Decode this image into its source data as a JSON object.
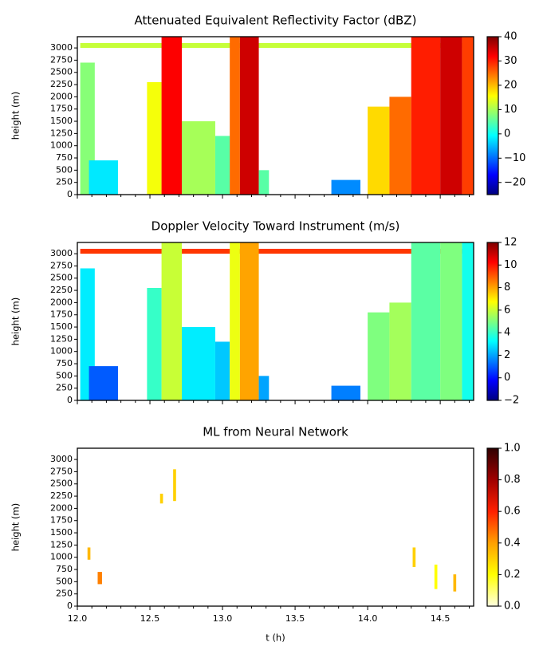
{
  "chart_data": [
    {
      "type": "heatmap",
      "title": "Attenuated Equivalent Reflectivity Factor (dBZ)",
      "y_label": "height (m)",
      "xlim": [
        12,
        14.73
      ],
      "ylim": [
        0,
        3230
      ],
      "xticks": [
        {
          "value": 12,
          "label": "12.0"
        },
        12.5,
        {
          "value": 13,
          "label": "13.0"
        },
        13.5,
        {
          "value": 14,
          "label": "14.0"
        },
        14.5
      ],
      "yticks": [
        0,
        250,
        500,
        750,
        1000,
        1250,
        1500,
        1750,
        2000,
        2250,
        2500,
        2750,
        3000
      ],
      "clim": [
        -25,
        40
      ],
      "cticks": [
        {
          "value": -20,
          "label": "−20"
        },
        {
          "value": -10,
          "label": "−10"
        },
        0,
        10,
        20,
        30,
        40
      ],
      "cmap": [
        "#00007f",
        "#0000ff",
        "#007fff",
        "#00ffff",
        "#7fff7f",
        "#ffff00",
        "#ff7f00",
        "#ff0000",
        "#7f0000"
      ],
      "cells": [
        {
          "t0": 12.02,
          "t1": 14.73,
          "h0": 3000,
          "h1": 3100,
          "v": 12
        },
        {
          "t0": 12.02,
          "t1": 12.12,
          "h0": 0,
          "h1": 2700,
          "v": 8
        },
        {
          "t0": 12.08,
          "t1": 12.28,
          "h0": 0,
          "h1": 700,
          "v": -2
        },
        {
          "t0": 12.48,
          "t1": 12.58,
          "h0": 0,
          "h1": 2300,
          "v": 15
        },
        {
          "t0": 12.58,
          "t1": 12.72,
          "h0": 0,
          "h1": 3230,
          "v": 32
        },
        {
          "t0": 12.72,
          "t1": 12.95,
          "h0": 0,
          "h1": 1500,
          "v": 10
        },
        {
          "t0": 12.95,
          "t1": 13.05,
          "h0": 0,
          "h1": 1200,
          "v": 5
        },
        {
          "t0": 13.05,
          "t1": 13.12,
          "h0": 0,
          "h1": 3230,
          "v": 25
        },
        {
          "t0": 13.12,
          "t1": 13.25,
          "h0": 0,
          "h1": 3230,
          "v": 35
        },
        {
          "t0": 13.25,
          "t1": 13.32,
          "h0": 0,
          "h1": 500,
          "v": 5
        },
        {
          "t0": 13.75,
          "t1": 13.95,
          "h0": 0,
          "h1": 300,
          "v": -8
        },
        {
          "t0": 14.0,
          "t1": 14.15,
          "h0": 0,
          "h1": 1800,
          "v": 18
        },
        {
          "t0": 14.15,
          "t1": 14.3,
          "h0": 0,
          "h1": 2000,
          "v": 25
        },
        {
          "t0": 14.3,
          "t1": 14.5,
          "h0": 0,
          "h1": 3230,
          "v": 30
        },
        {
          "t0": 14.5,
          "t1": 14.65,
          "h0": 0,
          "h1": 3230,
          "v": 35
        },
        {
          "t0": 14.65,
          "t1": 14.73,
          "h0": 0,
          "h1": 3230,
          "v": 28
        }
      ]
    },
    {
      "type": "heatmap",
      "title": "Doppler Velocity Toward Instrument (m/s)",
      "y_label": "height (m)",
      "xlim": [
        12,
        14.73
      ],
      "ylim": [
        0,
        3230
      ],
      "xticks": [
        {
          "value": 12,
          "label": "12.0"
        },
        12.5,
        {
          "value": 13,
          "label": "13.0"
        },
        13.5,
        {
          "value": 14,
          "label": "14.0"
        },
        14.5
      ],
      "yticks": [
        0,
        250,
        500,
        750,
        1000,
        1250,
        1500,
        1750,
        2000,
        2250,
        2500,
        2750,
        3000
      ],
      "clim": [
        -2,
        12
      ],
      "cticks": [
        {
          "value": -2,
          "label": "−2"
        },
        0,
        2,
        4,
        6,
        8,
        10,
        12
      ],
      "cmap": [
        "#00007f",
        "#0000ff",
        "#007fff",
        "#00ffff",
        "#7fff7f",
        "#ffff00",
        "#ff7f00",
        "#ff0000",
        "#7f0000"
      ],
      "cells": [
        {
          "t0": 12.02,
          "t1": 14.73,
          "h0": 3000,
          "h1": 3100,
          "v": 9.5
        },
        {
          "t0": 12.02,
          "t1": 12.12,
          "h0": 0,
          "h1": 2700,
          "v": 3
        },
        {
          "t0": 12.08,
          "t1": 12.28,
          "h0": 0,
          "h1": 700,
          "v": 1
        },
        {
          "t0": 12.48,
          "t1": 12.58,
          "h0": 0,
          "h1": 2300,
          "v": 4
        },
        {
          "t0": 12.58,
          "t1": 12.72,
          "h0": 0,
          "h1": 3230,
          "v": 6
        },
        {
          "t0": 12.72,
          "t1": 12.95,
          "h0": 0,
          "h1": 1500,
          "v": 3
        },
        {
          "t0": 12.95,
          "t1": 13.05,
          "h0": 0,
          "h1": 1200,
          "v": 2.5
        },
        {
          "t0": 13.05,
          "t1": 13.12,
          "h0": 0,
          "h1": 3230,
          "v": 6.5
        },
        {
          "t0": 13.12,
          "t1": 13.25,
          "h0": 0,
          "h1": 3230,
          "v": 8
        },
        {
          "t0": 13.25,
          "t1": 13.32,
          "h0": 0,
          "h1": 500,
          "v": 2
        },
        {
          "t0": 13.75,
          "t1": 13.95,
          "h0": 0,
          "h1": 300,
          "v": 1.5
        },
        {
          "t0": 14.0,
          "t1": 14.15,
          "h0": 0,
          "h1": 1800,
          "v": 5
        },
        {
          "t0": 14.15,
          "t1": 14.3,
          "h0": 0,
          "h1": 2000,
          "v": 5.5
        },
        {
          "t0": 14.3,
          "t1": 14.5,
          "h0": 0,
          "h1": 3230,
          "v": 4.5
        },
        {
          "t0": 14.5,
          "t1": 14.65,
          "h0": 0,
          "h1": 3230,
          "v": 5
        },
        {
          "t0": 14.65,
          "t1": 14.73,
          "h0": 0,
          "h1": 3230,
          "v": 3.5
        }
      ]
    },
    {
      "type": "heatmap",
      "title": "ML from Neural Network",
      "y_label": "height (m)",
      "x_label": "t (h)",
      "xlim": [
        12,
        14.73
      ],
      "ylim": [
        0,
        3230
      ],
      "xticks": [
        {
          "value": 12,
          "label": "12.0"
        },
        12.5,
        {
          "value": 13,
          "label": "13.0"
        },
        13.5,
        {
          "value": 14,
          "label": "14.0"
        },
        14.5
      ],
      "yticks": [
        0,
        250,
        500,
        750,
        1000,
        1250,
        1500,
        1750,
        2000,
        2250,
        2500,
        2750,
        3000
      ],
      "clim": [
        0,
        1
      ],
      "cticks": [
        {
          "value": 0,
          "label": "0.0"
        },
        0.2,
        0.4,
        0.6,
        0.8,
        {
          "value": 1,
          "label": "1.0"
        }
      ],
      "cmap": [
        "#ffffe0",
        "#ffff00",
        "#ffa000",
        "#ff2000",
        "#a00000",
        "#300000"
      ],
      "cells": [
        {
          "t0": 12.07,
          "t1": 12.09,
          "h0": 950,
          "h1": 1200,
          "v": 0.35
        },
        {
          "t0": 12.14,
          "t1": 12.17,
          "h0": 450,
          "h1": 700,
          "v": 0.45
        },
        {
          "t0": 12.57,
          "t1": 12.59,
          "h0": 2100,
          "h1": 2300,
          "v": 0.3
        },
        {
          "t0": 12.66,
          "t1": 12.68,
          "h0": 2150,
          "h1": 2800,
          "v": 0.3
        },
        {
          "t0": 14.31,
          "t1": 14.33,
          "h0": 800,
          "h1": 1200,
          "v": 0.3
        },
        {
          "t0": 14.46,
          "t1": 14.48,
          "h0": 350,
          "h1": 850,
          "v": 0.2
        },
        {
          "t0": 14.59,
          "t1": 14.61,
          "h0": 300,
          "h1": 650,
          "v": 0.35
        }
      ]
    }
  ]
}
